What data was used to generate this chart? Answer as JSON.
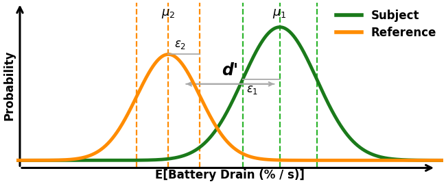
{
  "mu1": 5.5,
  "mu2": 2.5,
  "sigma1": 1.0,
  "sigma2": 0.85,
  "color_subject": "#1a7a1a",
  "color_reference": "#ff8c00",
  "color_dashed_subject": "#2db52d",
  "color_dashed_reference": "#ff8c00",
  "color_annotation": "#aaaaaa",
  "lw_curve": 3.5,
  "xlabel": "E[Battery Drain (% / s)]",
  "ylabel": "Probability",
  "legend_subject": "Subject",
  "legend_reference": "Reference",
  "xmin": -1.5,
  "xmax": 9.5,
  "ymin": -0.025,
  "ymax": 0.52,
  "label_fontsize": 12,
  "annot_fontsize": 12,
  "target_peak1": 0.44,
  "target_peak2": 0.35
}
